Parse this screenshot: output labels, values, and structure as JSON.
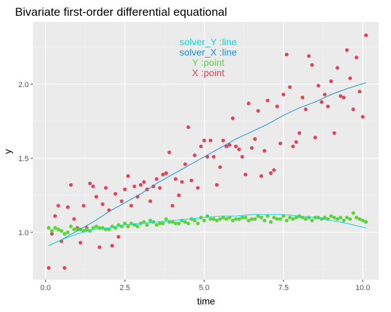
{
  "chart_data": {
    "type": "scatter",
    "title": "Bivariate first-order differential equational",
    "xlabel": "time",
    "ylabel": "y",
    "xlim": [
      -0.4,
      10.5
    ],
    "ylim": [
      0.68,
      2.42
    ],
    "x_ticks": [
      0,
      2.5,
      5,
      7.5,
      10
    ],
    "x_tick_labels": [
      "0.0",
      "2.5",
      "5.0",
      "7.5",
      "10.0"
    ],
    "y_ticks": [
      1.0,
      1.5,
      2.0
    ],
    "y_tick_labels": [
      "1.0",
      "1.5",
      "2.0"
    ],
    "grid": true,
    "legend_position": "top-center",
    "legend": [
      {
        "label": "solver_Y :line",
        "color": "#00dddd"
      },
      {
        "label": "solver_X :line",
        "color": "#1a8fd6"
      },
      {
        "label": "Y :point",
        "color": "#5ad63a"
      },
      {
        "label": "X :point",
        "color": "#e0435a"
      }
    ],
    "series": [
      {
        "kind": "point",
        "color": "#e0435a",
        "points": [
          [
            0.1,
            0.76
          ],
          [
            0.2,
            0.99
          ],
          [
            0.3,
            1.11
          ],
          [
            0.4,
            1.18
          ],
          [
            0.5,
            0.94
          ],
          [
            0.6,
            0.76
          ],
          [
            0.7,
            1.17
          ],
          [
            0.8,
            1.32
          ],
          [
            0.9,
            1.09
          ],
          [
            1.0,
            1.03
          ],
          [
            1.1,
            0.93
          ],
          [
            1.2,
            1.18
          ],
          [
            1.3,
            1.03
          ],
          [
            1.4,
            1.33
          ],
          [
            1.5,
            1.31
          ],
          [
            1.6,
            1.24
          ],
          [
            1.7,
            0.9
          ],
          [
            1.8,
            1.19
          ],
          [
            1.9,
            1.3
          ],
          [
            2.0,
            1.15
          ],
          [
            2.1,
            0.91
          ],
          [
            2.2,
            1.26
          ],
          [
            2.3,
            0.97
          ],
          [
            2.4,
            1.21
          ],
          [
            2.5,
            1.29
          ],
          [
            2.6,
            1.38
          ],
          [
            2.7,
            1.18
          ],
          [
            2.8,
            1.31
          ],
          [
            2.9,
            1.24
          ],
          [
            3.0,
            1.32
          ],
          [
            3.1,
            1.34
          ],
          [
            3.2,
            1.29
          ],
          [
            3.3,
            1.21
          ],
          [
            3.4,
            1.31
          ],
          [
            3.5,
            1.36
          ],
          [
            3.6,
            1.3
          ],
          [
            3.7,
            1.39
          ],
          [
            3.8,
            1.4
          ],
          [
            3.9,
            1.54
          ],
          [
            4.0,
            1.18
          ],
          [
            4.1,
            1.36
          ],
          [
            4.2,
            1.25
          ],
          [
            4.3,
            1.34
          ],
          [
            4.4,
            1.46
          ],
          [
            4.5,
            1.71
          ],
          [
            4.6,
            1.35
          ],
          [
            4.7,
            1.52
          ],
          [
            4.8,
            1.3
          ],
          [
            4.9,
            1.58
          ],
          [
            5.0,
            1.62
          ],
          [
            5.1,
            1.51
          ],
          [
            5.2,
            1.62
          ],
          [
            5.3,
            1.51
          ],
          [
            5.4,
            1.32
          ],
          [
            5.5,
            1.44
          ],
          [
            5.6,
            1.62
          ],
          [
            5.7,
            1.58
          ],
          [
            5.8,
            1.59
          ],
          [
            5.9,
            1.77
          ],
          [
            6.0,
            1.58
          ],
          [
            6.1,
            1.56
          ],
          [
            6.2,
            1.51
          ],
          [
            6.3,
            1.39
          ],
          [
            6.4,
            1.87
          ],
          [
            6.5,
            1.57
          ],
          [
            6.6,
            1.63
          ],
          [
            6.7,
            1.82
          ],
          [
            6.8,
            1.38
          ],
          [
            6.9,
            1.55
          ],
          [
            7.0,
            1.89
          ],
          [
            7.1,
            1.4
          ],
          [
            7.2,
            1.42
          ],
          [
            7.3,
            1.85
          ],
          [
            7.4,
            1.6
          ],
          [
            7.5,
            1.93
          ],
          [
            7.6,
            2.2
          ],
          [
            7.7,
            1.98
          ],
          [
            7.8,
            1.58
          ],
          [
            7.9,
            1.61
          ],
          [
            8.0,
            1.67
          ],
          [
            8.1,
            1.91
          ],
          [
            8.2,
            1.83
          ],
          [
            8.3,
            2.19
          ],
          [
            8.4,
            2.13
          ],
          [
            8.5,
            1.64
          ],
          [
            8.6,
            1.99
          ],
          [
            8.7,
            1.88
          ],
          [
            8.8,
            1.93
          ],
          [
            8.9,
            1.85
          ],
          [
            9.0,
            2.02
          ],
          [
            9.1,
            1.67
          ],
          [
            9.2,
            2.11
          ],
          [
            9.3,
            1.92
          ],
          [
            9.4,
            1.91
          ],
          [
            9.5,
            2.23
          ],
          [
            9.6,
            2.04
          ],
          [
            9.7,
            1.83
          ],
          [
            9.8,
            2.18
          ],
          [
            9.9,
            1.95
          ],
          [
            10.0,
            1.78
          ],
          [
            10.1,
            2.33
          ]
        ]
      },
      {
        "kind": "point",
        "color": "#5ad63a",
        "points": [
          [
            0.1,
            1.03
          ],
          [
            0.2,
            1.01
          ],
          [
            0.3,
            1.03
          ],
          [
            0.4,
            1.02
          ],
          [
            0.5,
            1.01
          ],
          [
            0.6,
            0.99
          ],
          [
            0.7,
            1.0
          ],
          [
            0.8,
            1.04
          ],
          [
            0.9,
            1.02
          ],
          [
            1.0,
            1.02
          ],
          [
            1.1,
            1.02
          ],
          [
            1.2,
            1.01
          ],
          [
            1.3,
            1.02
          ],
          [
            1.4,
            1.01
          ],
          [
            1.5,
            1.03
          ],
          [
            1.6,
            1.04
          ],
          [
            1.7,
            1.03
          ],
          [
            1.8,
            1.03
          ],
          [
            1.9,
            1.02
          ],
          [
            2.0,
            1.02
          ],
          [
            2.1,
            1.04
          ],
          [
            2.2,
            1.03
          ],
          [
            2.3,
            1.05
          ],
          [
            2.4,
            1.04
          ],
          [
            2.5,
            1.06
          ],
          [
            2.6,
            1.04
          ],
          [
            2.7,
            1.06
          ],
          [
            2.8,
            1.05
          ],
          [
            2.9,
            1.04
          ],
          [
            3.0,
            1.06
          ],
          [
            3.1,
            1.07
          ],
          [
            3.2,
            1.05
          ],
          [
            3.3,
            1.08
          ],
          [
            3.4,
            1.07
          ],
          [
            3.5,
            1.05
          ],
          [
            3.6,
            1.06
          ],
          [
            3.7,
            1.06
          ],
          [
            3.8,
            1.09
          ],
          [
            3.9,
            1.07
          ],
          [
            4.0,
            1.07
          ],
          [
            4.1,
            1.06
          ],
          [
            4.2,
            1.06
          ],
          [
            4.3,
            1.08
          ],
          [
            4.4,
            1.07
          ],
          [
            4.5,
            1.06
          ],
          [
            4.6,
            1.09
          ],
          [
            4.7,
            1.08
          ],
          [
            4.8,
            1.06
          ],
          [
            4.9,
            1.1
          ],
          [
            5.0,
            1.08
          ],
          [
            5.1,
            1.11
          ],
          [
            5.2,
            1.09
          ],
          [
            5.3,
            1.09
          ],
          [
            5.4,
            1.08
          ],
          [
            5.5,
            1.09
          ],
          [
            5.6,
            1.1
          ],
          [
            5.7,
            1.09
          ],
          [
            5.8,
            1.1
          ],
          [
            5.9,
            1.08
          ],
          [
            6.0,
            1.09
          ],
          [
            6.1,
            1.09
          ],
          [
            6.2,
            1.1
          ],
          [
            6.3,
            1.1
          ],
          [
            6.4,
            1.08
          ],
          [
            6.5,
            1.09
          ],
          [
            6.6,
            1.09
          ],
          [
            6.7,
            1.11
          ],
          [
            6.8,
            1.1
          ],
          [
            6.9,
            1.08
          ],
          [
            7.0,
            1.11
          ],
          [
            7.1,
            1.07
          ],
          [
            7.2,
            1.1
          ],
          [
            7.3,
            1.09
          ],
          [
            7.4,
            1.09
          ],
          [
            7.5,
            1.11
          ],
          [
            7.6,
            1.08
          ],
          [
            7.7,
            1.1
          ],
          [
            7.8,
            1.09
          ],
          [
            7.9,
            1.1
          ],
          [
            8.0,
            1.11
          ],
          [
            8.1,
            1.1
          ],
          [
            8.2,
            1.09
          ],
          [
            8.3,
            1.1
          ],
          [
            8.4,
            1.08
          ],
          [
            8.5,
            1.1
          ],
          [
            8.6,
            1.1
          ],
          [
            8.7,
            1.09
          ],
          [
            8.8,
            1.1
          ],
          [
            8.9,
            1.09
          ],
          [
            9.0,
            1.11
          ],
          [
            9.1,
            1.1
          ],
          [
            9.2,
            1.09
          ],
          [
            9.3,
            1.1
          ],
          [
            9.4,
            1.08
          ],
          [
            9.5,
            1.1
          ],
          [
            9.6,
            1.09
          ],
          [
            9.7,
            1.13
          ],
          [
            9.8,
            1.1
          ],
          [
            9.9,
            1.09
          ],
          [
            10.0,
            1.08
          ],
          [
            10.1,
            1.07
          ]
        ]
      },
      {
        "kind": "line",
        "color": "#1a8fd6",
        "points": [
          [
            0.1,
            0.91
          ],
          [
            0.5,
            0.95
          ],
          [
            1.0,
            1.01
          ],
          [
            1.5,
            1.07
          ],
          [
            2.0,
            1.14
          ],
          [
            2.5,
            1.2
          ],
          [
            3.0,
            1.26
          ],
          [
            3.5,
            1.33
          ],
          [
            4.0,
            1.39
          ],
          [
            4.5,
            1.45
          ],
          [
            5.0,
            1.51
          ],
          [
            5.5,
            1.57
          ],
          [
            6.0,
            1.63
          ],
          [
            6.5,
            1.68
          ],
          [
            7.0,
            1.73
          ],
          [
            7.5,
            1.79
          ],
          [
            8.0,
            1.84
          ],
          [
            8.5,
            1.88
          ],
          [
            9.0,
            1.93
          ],
          [
            9.5,
            1.97
          ],
          [
            10.1,
            2.01
          ]
        ]
      },
      {
        "kind": "line",
        "color": "#00dddd",
        "points": [
          [
            0.1,
            0.91
          ],
          [
            0.5,
            0.95
          ],
          [
            1.0,
            0.99
          ],
          [
            1.5,
            1.02
          ],
          [
            2.0,
            1.03
          ],
          [
            2.5,
            1.05
          ],
          [
            3.0,
            1.06
          ],
          [
            3.5,
            1.07
          ],
          [
            4.0,
            1.08
          ],
          [
            4.5,
            1.09
          ],
          [
            5.0,
            1.1
          ],
          [
            5.5,
            1.11
          ],
          [
            6.0,
            1.11
          ],
          [
            6.5,
            1.12
          ],
          [
            7.0,
            1.12
          ],
          [
            7.5,
            1.12
          ],
          [
            8.0,
            1.11
          ],
          [
            8.5,
            1.1
          ],
          [
            9.0,
            1.08
          ],
          [
            9.5,
            1.06
          ],
          [
            10.1,
            1.03
          ]
        ]
      }
    ]
  }
}
